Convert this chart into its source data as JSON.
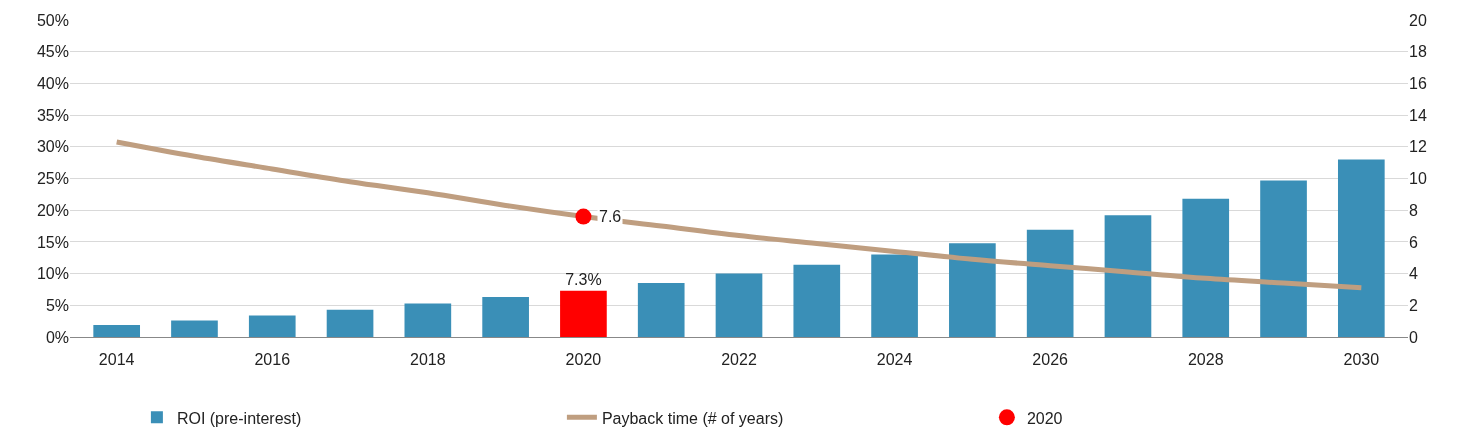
{
  "chart_data": {
    "type": "bar",
    "x": [
      2014,
      2015,
      2016,
      2017,
      2018,
      2019,
      2020,
      2021,
      2022,
      2023,
      2024,
      2025,
      2026,
      2027,
      2028,
      2029,
      2030
    ],
    "xlim": [
      2013.4,
      2030.6
    ],
    "xticks": [
      2014,
      2016,
      2018,
      2020,
      2022,
      2024,
      2026,
      2028,
      2030
    ],
    "ylim": [
      0,
      0.5
    ],
    "yticks": [
      {
        "value": 0,
        "label": "0%"
      },
      {
        "value": 0.05,
        "label": "5%"
      },
      {
        "value": 0.1,
        "label": "10%"
      },
      {
        "value": 0.15,
        "label": "15%"
      },
      {
        "value": 0.2,
        "label": "20%"
      },
      {
        "value": 0.25,
        "label": "25%"
      },
      {
        "value": 0.3,
        "label": "30%"
      },
      {
        "value": 0.35,
        "label": "35%"
      },
      {
        "value": 0.4,
        "label": "40%"
      },
      {
        "value": 0.45,
        "label": "45%"
      },
      {
        "value": 0.5,
        "label": "50%"
      }
    ],
    "y2lim": [
      0,
      20
    ],
    "y2ticks": [
      0,
      2,
      4,
      6,
      8,
      10,
      12,
      14,
      16,
      18,
      20
    ],
    "grid": "y",
    "legend": "bottom",
    "series": [
      {
        "name": "ROI (pre-interest)",
        "colors": [
          "#3a8fb7",
          "#3a8fb7",
          "#3a8fb7",
          "#3a8fb7",
          "#3a8fb7",
          "#3a8fb7",
          "#ff0000",
          "#3a8fb7",
          "#3a8fb7",
          "#3a8fb7",
          "#3a8fb7",
          "#3a8fb7",
          "#3a8fb7",
          "#3a8fb7",
          "#3a8fb7",
          "#3a8fb7",
          "#3a8fb7"
        ],
        "values": [
          0.019,
          0.026,
          0.034,
          0.043,
          0.053,
          0.063,
          0.073,
          0.085,
          0.1,
          0.114,
          0.13,
          0.148,
          0.169,
          0.192,
          0.218,
          0.247,
          0.28
        ],
        "value_labels": [
          null,
          null,
          null,
          null,
          null,
          null,
          "7.3%",
          null,
          null,
          null,
          null,
          null,
          null,
          null,
          null,
          null,
          null
        ]
      },
      {
        "name": "Payback time (# of years)",
        "type": "line",
        "axis": "y2",
        "color": "#bf9e80",
        "marker": "none",
        "line_style": "solid",
        "values": [
          12.3,
          11.4,
          10.6,
          9.8,
          9.1,
          8.3,
          7.6,
          7.0,
          6.4,
          5.9,
          5.4,
          4.9,
          4.5,
          4.1,
          3.7,
          3.4,
          3.1
        ]
      },
      {
        "name": "2020",
        "type": "scatter",
        "axis": "y2",
        "color": "#ff0000",
        "marker": "circle",
        "x": [
          2020
        ],
        "values": [
          7.6
        ],
        "value_labels": [
          "7.6"
        ]
      }
    ]
  }
}
